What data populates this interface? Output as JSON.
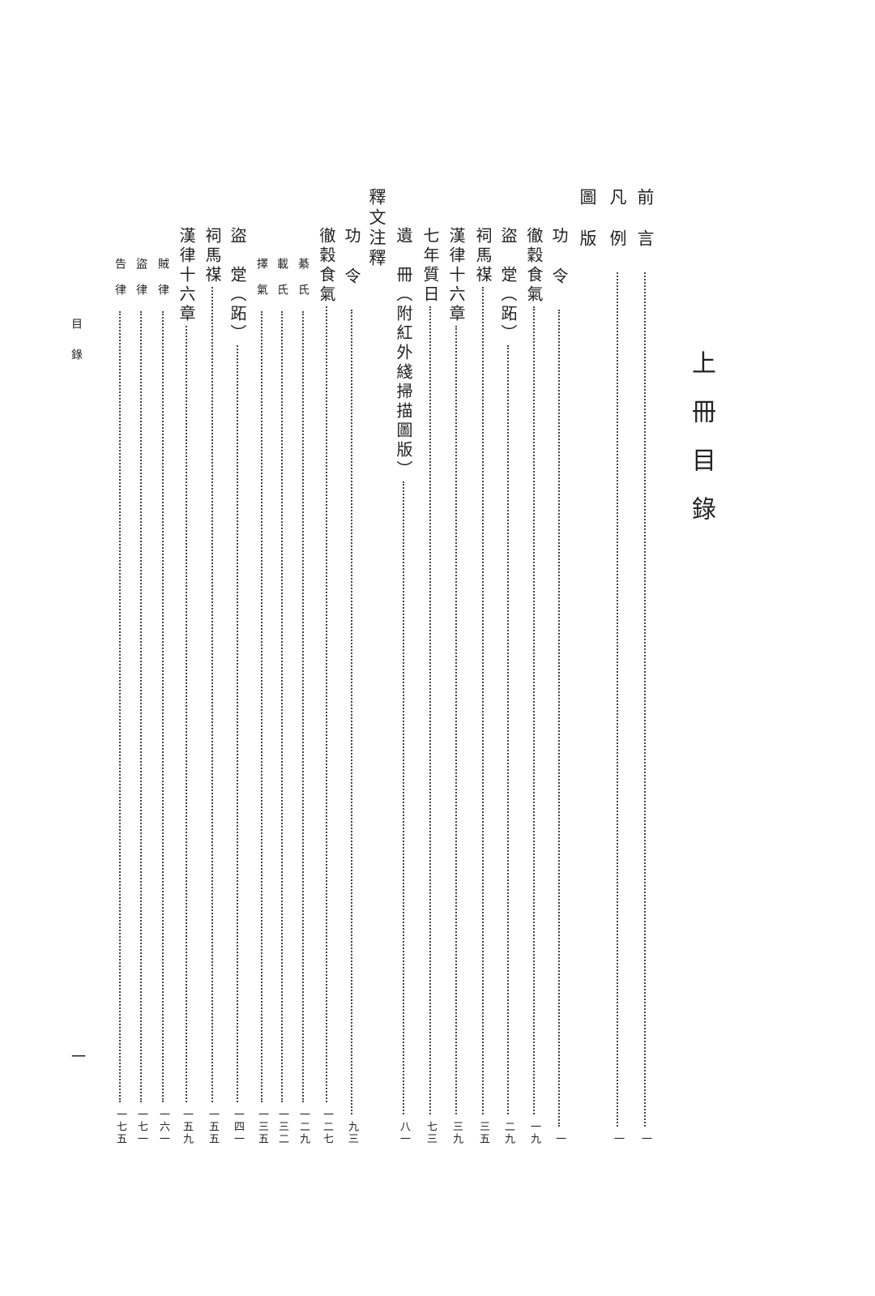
{
  "heading": "上冊目錄",
  "side_label": "目錄",
  "page_number": "一",
  "entries": [
    {
      "title": "前言",
      "page": "一",
      "level": 1,
      "spaced": true
    },
    {
      "title": "凡例",
      "page": "一",
      "level": 1,
      "spaced": true
    },
    {
      "title": "圖版",
      "page": "",
      "level": 1,
      "spaced": true,
      "section": true
    },
    {
      "title": "功令",
      "page": "一",
      "level": 2,
      "spaced": true
    },
    {
      "title": "徹穀食氣",
      "page": "一九",
      "level": 2
    },
    {
      "title": "盜　䟫（跖）",
      "page": "二九",
      "level": 2
    },
    {
      "title": "祠馬禖",
      "page": "三五",
      "level": 2
    },
    {
      "title": "漢律十六章",
      "page": "三九",
      "level": 2
    },
    {
      "title": "七年質日",
      "page": "七三",
      "level": 2
    },
    {
      "title": "遺　冊（附紅外綫掃描圖版）",
      "page": "八一",
      "level": 2
    },
    {
      "title": "釋文注釋",
      "page": "",
      "level": 1,
      "section": true
    },
    {
      "title": "功令",
      "page": "九三",
      "level": 2,
      "spaced": true
    },
    {
      "title": "徹穀食氣",
      "page": "一二七",
      "level": 2
    },
    {
      "title": "綦氏",
      "page": "一二九",
      "level": 3
    },
    {
      "title": "載氏",
      "page": "一三二",
      "level": 3
    },
    {
      "title": "擇氣",
      "page": "一三五",
      "level": 3
    },
    {
      "title": "盜　䟫（跖）",
      "page": "一四一",
      "level": 2
    },
    {
      "title": "祠馬禖",
      "page": "一五五",
      "level": 2
    },
    {
      "title": "漢律十六章",
      "page": "一五九",
      "level": 2
    },
    {
      "title": "賊律",
      "page": "一六一",
      "level": 3
    },
    {
      "title": "盜律",
      "page": "一七一",
      "level": 3
    },
    {
      "title": "告律",
      "page": "一七五",
      "level": 3
    }
  ]
}
